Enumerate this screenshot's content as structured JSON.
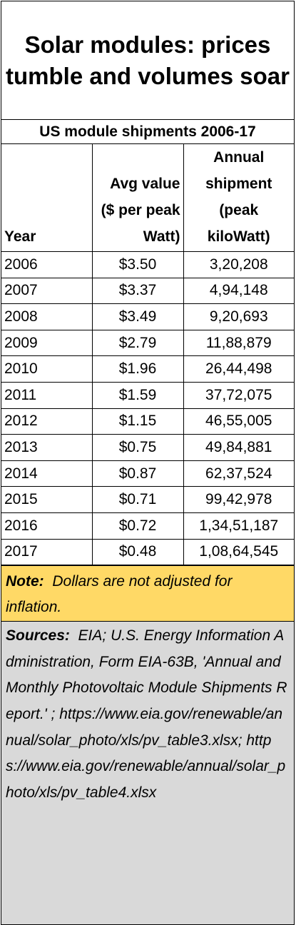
{
  "chart_data": {
    "type": "table",
    "title": "Solar modules:  prices tumble and volumes soar",
    "subtitle": "US module shipments 2006-17",
    "columns": [
      "Year",
      "Avg value ($ per peak Watt)",
      "Annual shipment (peak kiloWatt)"
    ],
    "rows": [
      {
        "year": "2006",
        "value": "$3.50",
        "shipment": "3,20,208"
      },
      {
        "year": "2007",
        "value": "$3.37",
        "shipment": "4,94,148"
      },
      {
        "year": "2008",
        "value": "$3.49",
        "shipment": "9,20,693"
      },
      {
        "year": "2009",
        "value": "$2.79",
        "shipment": "11,88,879"
      },
      {
        "year": "2010",
        "value": "$1.96",
        "shipment": "26,44,498"
      },
      {
        "year": "2011",
        "value": "$1.59",
        "shipment": "37,72,075"
      },
      {
        "year": "2012",
        "value": "$1.15",
        "shipment": "46,55,005"
      },
      {
        "year": "2013",
        "value": "$0.75",
        "shipment": "49,84,881"
      },
      {
        "year": "2014",
        "value": "$0.87",
        "shipment": "62,37,524"
      },
      {
        "year": "2015",
        "value": "$0.71",
        "shipment": "99,42,978"
      },
      {
        "year": "2016",
        "value": "$0.72",
        "shipment": "1,34,51,187"
      },
      {
        "year": "2017",
        "value": "$0.48",
        "shipment": "1,08,64,545"
      }
    ],
    "note_label": "Note:",
    "note_text": "Dollars are not adjusted for inflation.",
    "sources_label": "Sources:",
    "sources_text": "EIA; U.S. Energy Information Administration, Form EIA-63B, 'Annual and Monthly Photovoltaic Module Shipments Report.' ; https://www.eia.gov/renewable/annual/solar_photo/xls/pv_table3.xlsx; https://www.eia.gov/renewable/annual/solar_photo/xls/pv_table4.xlsx",
    "colors": {
      "note_bg": "#ffd966",
      "sources_bg": "#d9d9d9",
      "border": "#000000"
    }
  }
}
